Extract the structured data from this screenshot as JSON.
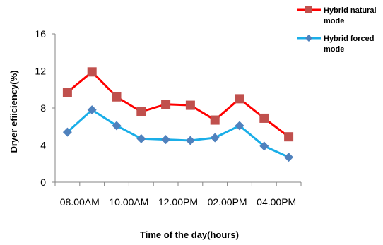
{
  "chart_data": {
    "type": "line",
    "title": "",
    "xlabel": "Time  of the day(hours)",
    "ylabel": "Dryer  efiiciency(%)",
    "ylim": [
      0,
      16
    ],
    "yticks": [
      0,
      4,
      8,
      12,
      16
    ],
    "x_points": 10,
    "xtick_labels": [
      "08.00AM",
      "10.00AM",
      "12.00PM",
      "02.00PM",
      "04.00PM"
    ],
    "grid": false,
    "legend_position": "top-right",
    "series": [
      {
        "name": "Hybrid natural mode",
        "legend_lines": [
          "Hybrid natural",
          "mode"
        ],
        "color": "#ff0000",
        "marker_color": "#c0504d",
        "marker": "square",
        "values": [
          9.7,
          11.9,
          9.2,
          7.6,
          8.4,
          8.3,
          6.7,
          9.0,
          6.9,
          4.9
        ]
      },
      {
        "name": "Hybrid forced mode",
        "legend_lines": [
          "Hybrid forced",
          "mode"
        ],
        "color": "#1aaee8",
        "marker_color": "#4f81bd",
        "marker": "diamond",
        "values": [
          5.4,
          7.8,
          6.1,
          4.7,
          4.6,
          4.5,
          4.8,
          6.1,
          3.9,
          2.7
        ]
      }
    ]
  }
}
